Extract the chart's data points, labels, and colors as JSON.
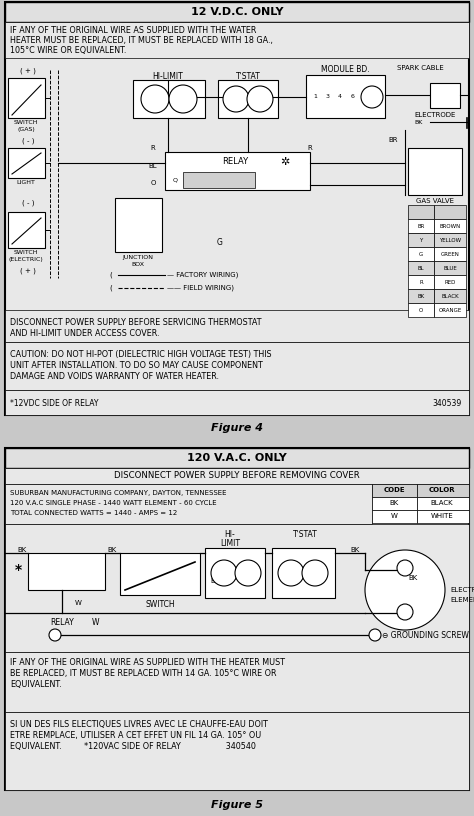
{
  "bg_color": "#c8c8c8",
  "box_bg": "#e8e8e8",
  "white": "#ffffff",
  "title1": "12 V.D.C. ONLY",
  "title2": "120 V.A.C. ONLY",
  "fig4_caption": "Figure 4",
  "fig5_caption": "Figure 5",
  "fig1_warning1_line1": "IF ANY OF THE ORIGINAL WIRE AS SUPPLIED WITH THE WATER",
  "fig1_warning1_line2": "HEATER MUST BE REPLACED, IT MUST BE REPLACED WITH 18 GA.,",
  "fig1_warning1_line3": "105°C WIRE OR EQUIVALENT.",
  "fig1_warning2_line1": "DISCONNECT POWER SUPPLY BEFORE SERVICING THERMOSTAT",
  "fig1_warning2_line2": "AND HI-LIMIT UNDER ACCESS COVER.",
  "fig1_caution_line1": "CAUTION: DO NOT HI-POT (DIELECTRIC HIGH VOLTAGE TEST) THIS",
  "fig1_caution_line2": "UNIT AFTER INSTALLATION. TO DO SO MAY CAUSE COMPONENT",
  "fig1_caution_line3": "DAMAGE AND VOIDS WARRANTY OF WATER HEATER.",
  "fig1_relay_left": "*12VDC SIDE OF RELAY",
  "fig1_relay_right": "340539",
  "fig2_header": "DISCONNECT POWER SUPPLY BEFORE REMOVING COVER",
  "fig2_info_line1": "SUBURBAN MANUFACTURING COMPANY, DAYTON, TENNESSEE",
  "fig2_info_line2": "120 V.A.C SINGLE PHASE - 1440 WATT ELEMENT - 60 CYCLE",
  "fig2_info_line3": "TOTAL CONNECTED WATTS = 1440 - AMPS = 12",
  "fig2_warn_line1": "IF ANY OF THE ORIGINAL WIRE AS SUPPLIED WITH THE HEATER MUST",
  "fig2_warn_line2": "BE REPLACED, IT MUST BE REPLACED WITH 14 GA. 105°C WIRE OR",
  "fig2_warn_line3": "EQUIVALENT.",
  "fig2_fr_line1": "SI UN DES FILS ELECTIQUES LIVRES AVEC LE CHAUFFE-EAU DOIT",
  "fig2_fr_line2": "ETRE REMPLACE, UTILISER A CET EFFET UN FIL 14 GA. 105° OU",
  "fig2_fr_line3": "EQUIVALENT.         *120VAC SIDE OF RELAY                  340540",
  "color_table1": [
    [
      "BR",
      "BROWN"
    ],
    [
      "Y",
      "YELLOW"
    ],
    [
      "G",
      "GREEN"
    ],
    [
      "BL",
      "BLUE"
    ],
    [
      "R",
      "RED"
    ],
    [
      "BK",
      "BLACK"
    ],
    [
      "O",
      "ORANGE"
    ]
  ],
  "color_table2_header": [
    "CODE",
    "COLOR"
  ],
  "color_table2": [
    [
      "BK",
      "BLACK"
    ],
    [
      "W",
      "WHITE"
    ]
  ]
}
